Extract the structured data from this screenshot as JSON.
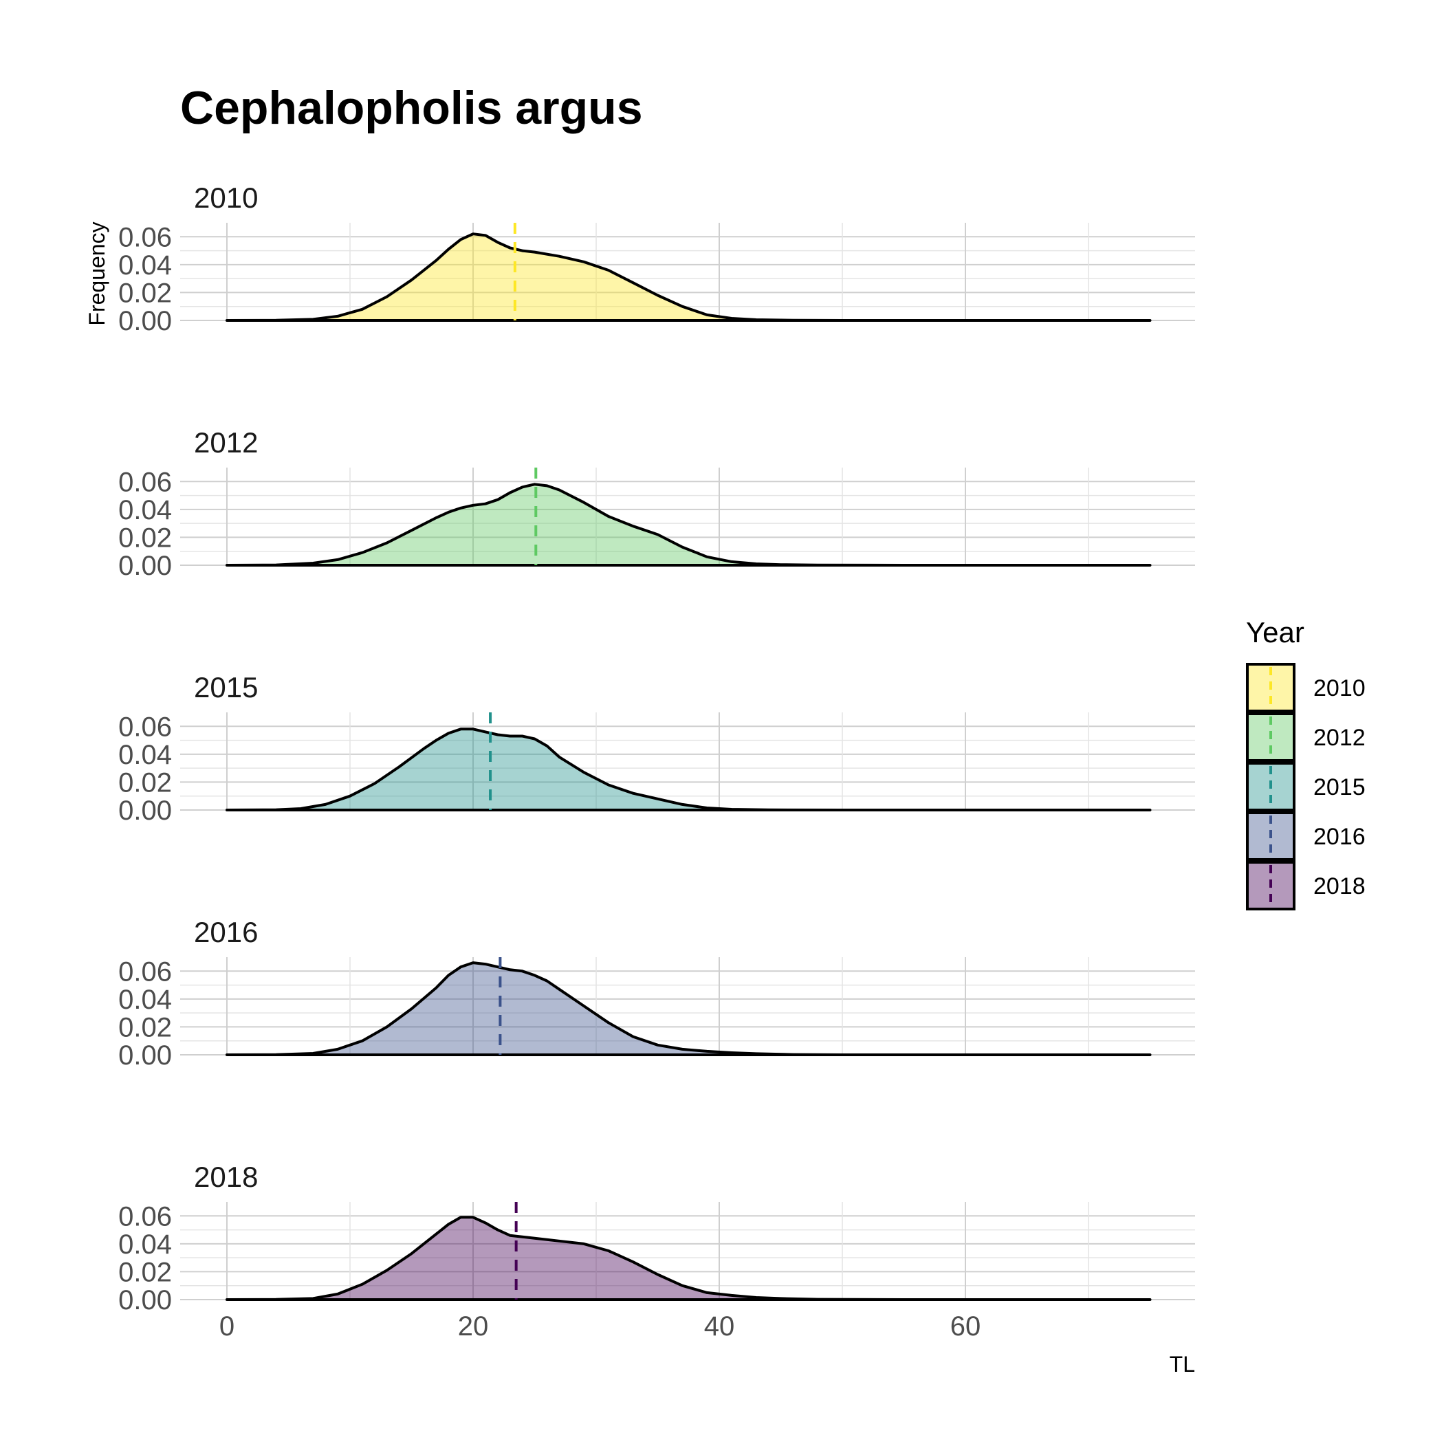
{
  "chart_data": {
    "type": "area",
    "title": "Cephalopholis argus",
    "xlabel": "TL",
    "ylabel": "Frequency",
    "xlim": [
      -4,
      78.5
    ],
    "ylim": [
      0,
      0.07
    ],
    "x_ticks": [
      0,
      20,
      40,
      60
    ],
    "y_ticks": [
      0.0,
      0.02,
      0.04,
      0.06
    ],
    "y_tick_labels": [
      "0.00",
      "0.02",
      "0.04",
      "0.06"
    ],
    "grid": true,
    "legend": {
      "title": "Year",
      "position": "right"
    },
    "series": [
      {
        "name": "2010",
        "color": "#FDE725",
        "mean": 23.4,
        "x": [
          0,
          4,
          7,
          9,
          11,
          13,
          15,
          17,
          18,
          19,
          20,
          21,
          22,
          23,
          24,
          25,
          27,
          29,
          31,
          33,
          35,
          37,
          39,
          41,
          43,
          46,
          50,
          60,
          70,
          75
        ],
        "y": [
          0,
          0.0001,
          0.0008,
          0.003,
          0.008,
          0.017,
          0.029,
          0.043,
          0.051,
          0.058,
          0.062,
          0.061,
          0.056,
          0.052,
          0.05,
          0.049,
          0.046,
          0.042,
          0.036,
          0.027,
          0.018,
          0.01,
          0.004,
          0.0015,
          0.0005,
          0.0001,
          0,
          0,
          0,
          0
        ]
      },
      {
        "name": "2012",
        "color": "#5EC962",
        "mean": 25.1,
        "x": [
          0,
          4,
          7,
          9,
          11,
          13,
          15,
          17,
          18,
          19,
          20,
          21,
          22,
          23,
          24,
          25,
          26,
          27,
          29,
          31,
          33,
          35,
          37,
          39,
          41,
          43,
          45,
          48,
          55,
          65,
          75
        ],
        "y": [
          0,
          0.0002,
          0.0015,
          0.004,
          0.009,
          0.016,
          0.025,
          0.034,
          0.038,
          0.041,
          0.043,
          0.044,
          0.047,
          0.052,
          0.056,
          0.058,
          0.057,
          0.054,
          0.045,
          0.035,
          0.028,
          0.022,
          0.013,
          0.006,
          0.0025,
          0.001,
          0.0004,
          0.0001,
          0,
          0,
          0
        ]
      },
      {
        "name": "2015",
        "color": "#21918C",
        "mean": 21.4,
        "x": [
          0,
          4,
          6,
          8,
          10,
          12,
          14,
          16,
          17,
          18,
          19,
          20,
          21,
          22,
          23,
          24,
          25,
          26,
          27,
          29,
          31,
          33,
          35,
          37,
          39,
          41,
          44,
          50,
          60,
          75
        ],
        "y": [
          0,
          0.0002,
          0.001,
          0.004,
          0.01,
          0.019,
          0.031,
          0.044,
          0.05,
          0.055,
          0.058,
          0.058,
          0.056,
          0.054,
          0.053,
          0.053,
          0.051,
          0.046,
          0.038,
          0.027,
          0.018,
          0.012,
          0.008,
          0.004,
          0.0015,
          0.0005,
          0.0001,
          0,
          0,
          0
        ]
      },
      {
        "name": "2016",
        "color": "#3B528B",
        "mean": 22.2,
        "x": [
          0,
          4,
          7,
          9,
          11,
          13,
          15,
          17,
          18,
          19,
          20,
          21,
          22,
          23,
          24,
          25,
          26,
          27,
          29,
          31,
          33,
          35,
          37,
          39,
          41,
          43,
          46,
          50,
          60,
          75
        ],
        "y": [
          0,
          0.0001,
          0.001,
          0.004,
          0.01,
          0.02,
          0.033,
          0.048,
          0.057,
          0.063,
          0.066,
          0.065,
          0.063,
          0.061,
          0.06,
          0.057,
          0.053,
          0.047,
          0.035,
          0.023,
          0.013,
          0.007,
          0.004,
          0.0025,
          0.0015,
          0.0008,
          0.0002,
          0,
          0,
          0
        ]
      },
      {
        "name": "2018",
        "color": "#440154",
        "mean": 23.5,
        "x": [
          0,
          4,
          7,
          9,
          11,
          13,
          15,
          17,
          18,
          19,
          20,
          21,
          22,
          23,
          24,
          25,
          27,
          29,
          31,
          33,
          35,
          37,
          39,
          41,
          43,
          45,
          48,
          55,
          65,
          75
        ],
        "y": [
          0,
          0.0001,
          0.0008,
          0.004,
          0.011,
          0.021,
          0.033,
          0.047,
          0.054,
          0.059,
          0.059,
          0.055,
          0.05,
          0.046,
          0.045,
          0.044,
          0.042,
          0.04,
          0.035,
          0.027,
          0.018,
          0.01,
          0.005,
          0.003,
          0.0015,
          0.0008,
          0.0002,
          0,
          0,
          0
        ]
      }
    ]
  }
}
